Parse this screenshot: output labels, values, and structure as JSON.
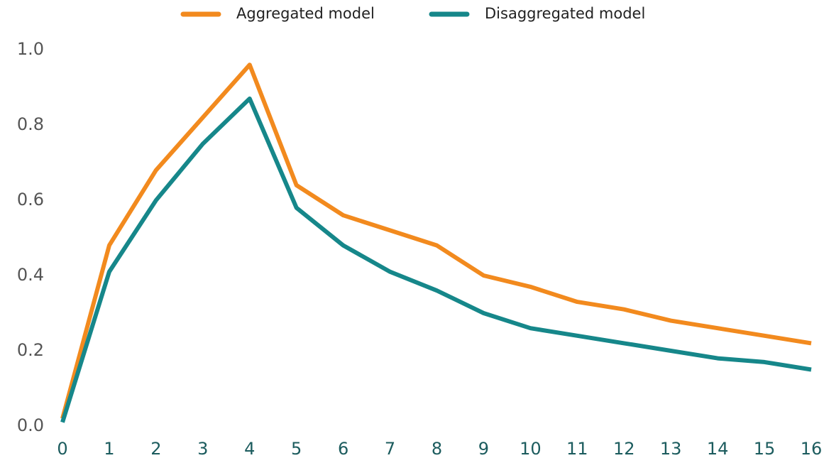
{
  "chart_data": {
    "type": "line",
    "x": [
      0,
      1,
      2,
      3,
      4,
      5,
      6,
      7,
      8,
      9,
      10,
      11,
      12,
      13,
      14,
      15,
      16
    ],
    "series": [
      {
        "name": "Aggregated model",
        "color": "#f28a1e",
        "values": [
          0.02,
          0.48,
          0.68,
          0.82,
          0.96,
          0.64,
          0.56,
          0.52,
          0.48,
          0.4,
          0.37,
          0.33,
          0.31,
          0.28,
          0.26,
          0.24,
          0.22
        ]
      },
      {
        "name": "Disaggregated model",
        "color": "#16878a",
        "values": [
          0.01,
          0.41,
          0.6,
          0.75,
          0.87,
          0.58,
          0.48,
          0.41,
          0.36,
          0.3,
          0.26,
          0.24,
          0.22,
          0.2,
          0.18,
          0.17,
          0.15
        ]
      }
    ],
    "xlim": [
      0,
      16
    ],
    "xticks": [
      0,
      1,
      2,
      3,
      4,
      5,
      6,
      7,
      8,
      9,
      10,
      11,
      12,
      13,
      14,
      15,
      16
    ],
    "ylim": [
      0,
      1
    ],
    "yticks": [
      {
        "value": 0,
        "label": "0.0"
      },
      0.2,
      0.4,
      0.6,
      0.8,
      {
        "value": 1,
        "label": "1.0"
      }
    ],
    "grid": false,
    "legend": "top"
  }
}
